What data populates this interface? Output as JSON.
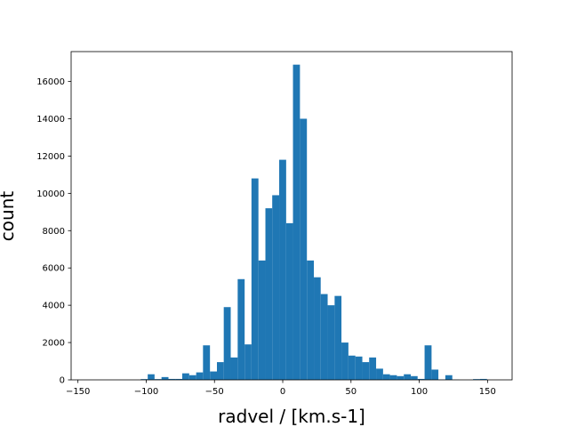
{
  "chart_data": {
    "type": "bar",
    "xlabel": "radvel / [km.s-1]",
    "ylabel": "count",
    "xlim": [
      -155,
      168
    ],
    "ylim": [
      0,
      17600
    ],
    "bar_color": "#1f77b4",
    "grid": false,
    "xticks": [
      -150,
      -100,
      -50,
      0,
      50,
      100,
      150
    ],
    "yticks": [
      0,
      2000,
      4000,
      6000,
      8000,
      10000,
      12000,
      14000,
      16000
    ],
    "bins": [
      {
        "x0": -104.0,
        "x1": -98.9,
        "count": 40
      },
      {
        "x0": -98.9,
        "x1": -93.9,
        "count": 300
      },
      {
        "x0": -93.9,
        "x1": -88.8,
        "count": 40
      },
      {
        "x0": -88.8,
        "x1": -83.7,
        "count": 150
      },
      {
        "x0": -83.7,
        "x1": -78.7,
        "count": 50
      },
      {
        "x0": -78.7,
        "x1": -73.6,
        "count": 50
      },
      {
        "x0": -73.6,
        "x1": -68.5,
        "count": 350
      },
      {
        "x0": -68.5,
        "x1": -63.4,
        "count": 250
      },
      {
        "x0": -63.4,
        "x1": -58.4,
        "count": 400
      },
      {
        "x0": -58.4,
        "x1": -53.3,
        "count": 1850
      },
      {
        "x0": -53.3,
        "x1": -48.2,
        "count": 450
      },
      {
        "x0": -48.2,
        "x1": -43.2,
        "count": 950
      },
      {
        "x0": -43.2,
        "x1": -38.1,
        "count": 3900
      },
      {
        "x0": -38.1,
        "x1": -33.0,
        "count": 1200
      },
      {
        "x0": -33.0,
        "x1": -27.9,
        "count": 5400
      },
      {
        "x0": -27.9,
        "x1": -22.9,
        "count": 1900
      },
      {
        "x0": -22.9,
        "x1": -17.8,
        "count": 10800
      },
      {
        "x0": -17.8,
        "x1": -12.7,
        "count": 6400
      },
      {
        "x0": -12.7,
        "x1": -7.7,
        "count": 9200
      },
      {
        "x0": -7.7,
        "x1": -2.6,
        "count": 9900
      },
      {
        "x0": -2.6,
        "x1": 2.5,
        "count": 11800
      },
      {
        "x0": 2.5,
        "x1": 7.5,
        "count": 8400
      },
      {
        "x0": 7.5,
        "x1": 12.6,
        "count": 16900
      },
      {
        "x0": 12.6,
        "x1": 17.7,
        "count": 14000
      },
      {
        "x0": 17.7,
        "x1": 22.8,
        "count": 6400
      },
      {
        "x0": 22.8,
        "x1": 27.8,
        "count": 5500
      },
      {
        "x0": 27.8,
        "x1": 32.9,
        "count": 4600
      },
      {
        "x0": 32.9,
        "x1": 38.0,
        "count": 4000
      },
      {
        "x0": 38.0,
        "x1": 43.0,
        "count": 4500
      },
      {
        "x0": 43.0,
        "x1": 48.1,
        "count": 2000
      },
      {
        "x0": 48.1,
        "x1": 53.2,
        "count": 1300
      },
      {
        "x0": 53.2,
        "x1": 58.3,
        "count": 1250
      },
      {
        "x0": 58.3,
        "x1": 63.3,
        "count": 950
      },
      {
        "x0": 63.3,
        "x1": 68.4,
        "count": 1200
      },
      {
        "x0": 68.4,
        "x1": 73.5,
        "count": 600
      },
      {
        "x0": 73.5,
        "x1": 78.5,
        "count": 300
      },
      {
        "x0": 78.5,
        "x1": 83.6,
        "count": 250
      },
      {
        "x0": 83.6,
        "x1": 88.7,
        "count": 200
      },
      {
        "x0": 88.7,
        "x1": 93.8,
        "count": 300
      },
      {
        "x0": 93.8,
        "x1": 98.8,
        "count": 200
      },
      {
        "x0": 98.8,
        "x1": 103.9,
        "count": 50
      },
      {
        "x0": 103.9,
        "x1": 109.0,
        "count": 1850
      },
      {
        "x0": 109.0,
        "x1": 114.0,
        "count": 550
      },
      {
        "x0": 114.0,
        "x1": 119.1,
        "count": 20
      },
      {
        "x0": 119.1,
        "x1": 124.2,
        "count": 250
      },
      {
        "x0": 124.2,
        "x1": 129.3,
        "count": 10
      },
      {
        "x0": 139.4,
        "x1": 144.5,
        "count": 40
      },
      {
        "x0": 144.5,
        "x1": 149.6,
        "count": 50
      }
    ]
  }
}
